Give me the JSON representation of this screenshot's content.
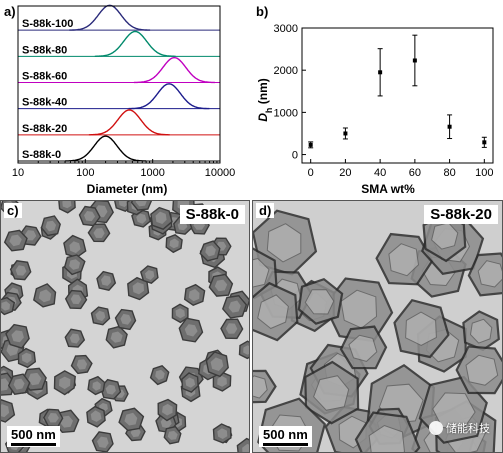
{
  "panel_a": {
    "label": "a)",
    "chart_data": {
      "type": "line",
      "xscale": "log",
      "xlim": [
        10,
        10000
      ],
      "xticks": [
        "10",
        "100",
        "1000",
        "10000"
      ],
      "xlabel": "Diameter (nm)",
      "ylabel": "",
      "series": [
        {
          "name": "S-88k-100",
          "color": "#2a2a7a",
          "peak": 230
        },
        {
          "name": "S-88k-80",
          "color": "#00896b",
          "peak": 550
        },
        {
          "name": "S-88k-60",
          "color": "#c000c0",
          "peak": 2100
        },
        {
          "name": "S-88k-40",
          "color": "#1c1c8c",
          "peak": 1750
        },
        {
          "name": "S-88k-20",
          "color": "#d01010",
          "peak": 450
        },
        {
          "name": "S-88k-0",
          "color": "#000000",
          "peak": 200
        }
      ]
    }
  },
  "panel_b": {
    "label": "b)",
    "chart_data": {
      "type": "scatter",
      "x": [
        0,
        20,
        40,
        60,
        80,
        100
      ],
      "y": [
        230,
        500,
        1950,
        2230,
        660,
        290
      ],
      "err": [
        70,
        130,
        560,
        600,
        280,
        120
      ],
      "xlim": [
        -5,
        105
      ],
      "ylim": [
        -200,
        3000
      ],
      "xticks": [
        "0",
        "20",
        "40",
        "60",
        "80",
        "100"
      ],
      "yticks": [
        "0",
        "1000",
        "2000",
        "3000"
      ],
      "xlabel": "SMA wt%",
      "ylabel_main": "D",
      "ylabel_sub": "h",
      "ylabel_unit": " (nm)"
    }
  },
  "panel_c": {
    "label": "c)",
    "sample": "S-88k-0",
    "scale_bar": "500 nm"
  },
  "panel_d": {
    "label": "d)",
    "sample": "S-88k-20",
    "scale_bar": "500 nm"
  },
  "watermark": "储能科技"
}
